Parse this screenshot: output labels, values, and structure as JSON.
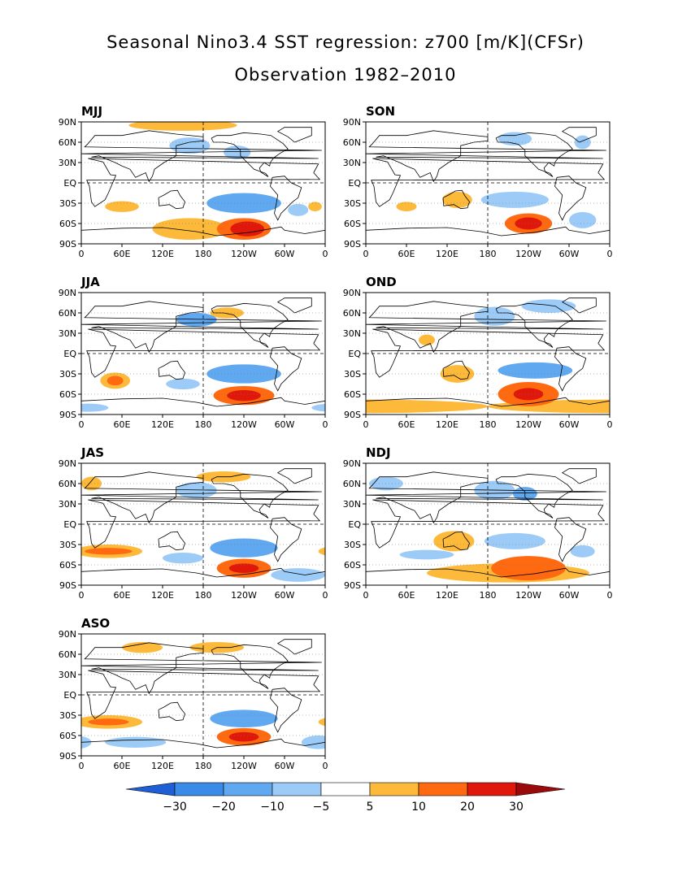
{
  "title": "Seasonal Nino3.4 SST regression: z700 [m/K](CFSr)",
  "subtitle": "Observation 1982–2010",
  "lat_labels": [
    "90N",
    "60N",
    "30N",
    "EQ",
    "30S",
    "60S",
    "90S"
  ],
  "lon_labels": [
    "0",
    "60E",
    "120E",
    "180",
    "120W",
    "60W",
    "0"
  ],
  "colorbar": {
    "labels": [
      "−30",
      "−20",
      "−10",
      "−5",
      "5",
      "10",
      "20",
      "30"
    ],
    "colors": [
      "#1e5fd6",
      "#3a8ae8",
      "#60a8f0",
      "#9ccbf7",
      "#ffffff",
      "#fdb93a",
      "#ff6a10",
      "#e0180b",
      "#9b0a0a"
    ]
  },
  "panels": [
    {
      "label": "MJJ",
      "blobs": [
        {
          "lon": 160,
          "lat": -68,
          "rx": 55,
          "ry": 16,
          "level": 1
        },
        {
          "lon": -120,
          "lat": -68,
          "rx": 40,
          "ry": 16,
          "level": 2
        },
        {
          "lon": -115,
          "lat": -68,
          "rx": 25,
          "ry": 11,
          "level": 3
        },
        {
          "lon": -120,
          "lat": -30,
          "rx": 55,
          "ry": 15,
          "level": -2
        },
        {
          "lon": -40,
          "lat": -40,
          "rx": 15,
          "ry": 9,
          "level": -1
        },
        {
          "lon": -15,
          "lat": -35,
          "rx": 10,
          "ry": 7,
          "level": 1
        },
        {
          "lon": 60,
          "lat": -35,
          "rx": 25,
          "ry": 8,
          "level": 1
        },
        {
          "lon": 160,
          "lat": 55,
          "rx": 30,
          "ry": 12,
          "level": -1
        },
        {
          "lon": -130,
          "lat": 45,
          "rx": 20,
          "ry": 10,
          "level": -1
        },
        {
          "lon": 150,
          "lat": 85,
          "rx": 80,
          "ry": 8,
          "level": 1
        }
      ]
    },
    {
      "label": "SON",
      "blobs": [
        {
          "lon": -120,
          "lat": -60,
          "rx": 35,
          "ry": 15,
          "level": 2
        },
        {
          "lon": -120,
          "lat": -60,
          "rx": 20,
          "ry": 9,
          "level": 3
        },
        {
          "lon": -140,
          "lat": -25,
          "rx": 50,
          "ry": 12,
          "level": -1
        },
        {
          "lon": -40,
          "lat": -55,
          "rx": 20,
          "ry": 12,
          "level": -1
        },
        {
          "lon": 135,
          "lat": -25,
          "rx": 22,
          "ry": 12,
          "level": 1
        },
        {
          "lon": 60,
          "lat": -35,
          "rx": 15,
          "ry": 7,
          "level": 1
        },
        {
          "lon": -40,
          "lat": 60,
          "rx": 12,
          "ry": 10,
          "level": -1
        },
        {
          "lon": -140,
          "lat": 65,
          "rx": 25,
          "ry": 10,
          "level": -1
        }
      ]
    },
    {
      "label": "JJA",
      "blobs": [
        {
          "lon": -120,
          "lat": -62,
          "rx": 45,
          "ry": 14,
          "level": 2
        },
        {
          "lon": -120,
          "lat": -62,
          "rx": 25,
          "ry": 8,
          "level": 3
        },
        {
          "lon": -120,
          "lat": -30,
          "rx": 55,
          "ry": 14,
          "level": -2
        },
        {
          "lon": 50,
          "lat": -40,
          "rx": 22,
          "ry": 12,
          "level": 1
        },
        {
          "lon": 50,
          "lat": -40,
          "rx": 12,
          "ry": 7,
          "level": 2
        },
        {
          "lon": 150,
          "lat": -45,
          "rx": 25,
          "ry": 8,
          "level": -1
        },
        {
          "lon": 170,
          "lat": 50,
          "rx": 30,
          "ry": 10,
          "level": -2
        },
        {
          "lon": -145,
          "lat": 60,
          "rx": 25,
          "ry": 8,
          "level": 1
        },
        {
          "lon": 10,
          "lat": -80,
          "rx": 30,
          "ry": 6,
          "level": -1
        }
      ]
    },
    {
      "label": "OND",
      "blobs": [
        {
          "lon": 0,
          "lat": -78,
          "rx": 180,
          "ry": 10,
          "level": 1
        },
        {
          "lon": -120,
          "lat": -60,
          "rx": 45,
          "ry": 18,
          "level": 2
        },
        {
          "lon": -120,
          "lat": -60,
          "rx": 22,
          "ry": 9,
          "level": 3
        },
        {
          "lon": -110,
          "lat": -25,
          "rx": 55,
          "ry": 12,
          "level": -2
        },
        {
          "lon": 135,
          "lat": -30,
          "rx": 25,
          "ry": 13,
          "level": 1
        },
        {
          "lon": -170,
          "lat": 55,
          "rx": 30,
          "ry": 14,
          "level": -1
        },
        {
          "lon": -90,
          "lat": 70,
          "rx": 40,
          "ry": 10,
          "level": -1
        },
        {
          "lon": 90,
          "lat": 20,
          "rx": 12,
          "ry": 8,
          "level": 1
        }
      ]
    },
    {
      "label": "JAS",
      "blobs": [
        {
          "lon": -120,
          "lat": -65,
          "rx": 40,
          "ry": 14,
          "level": 2
        },
        {
          "lon": -120,
          "lat": -65,
          "rx": 22,
          "ry": 7,
          "level": 3
        },
        {
          "lon": -120,
          "lat": -35,
          "rx": 50,
          "ry": 14,
          "level": -2
        },
        {
          "lon": 40,
          "lat": -40,
          "rx": 50,
          "ry": 10,
          "level": 1
        },
        {
          "lon": 40,
          "lat": -40,
          "rx": 35,
          "ry": 5,
          "level": 2
        },
        {
          "lon": -40,
          "lat": -75,
          "rx": 40,
          "ry": 10,
          "level": -1
        },
        {
          "lon": 150,
          "lat": -50,
          "rx": 30,
          "ry": 8,
          "level": -1
        },
        {
          "lon": 170,
          "lat": 50,
          "rx": 30,
          "ry": 12,
          "level": -1
        },
        {
          "lon": -150,
          "lat": 70,
          "rx": 40,
          "ry": 8,
          "level": 1
        },
        {
          "lon": 15,
          "lat": 60,
          "rx": 15,
          "ry": 10,
          "level": 1
        }
      ]
    },
    {
      "label": "NDJ",
      "blobs": [
        {
          "lon": -150,
          "lat": -72,
          "rx": 120,
          "ry": 14,
          "level": 1
        },
        {
          "lon": -120,
          "lat": -65,
          "rx": 55,
          "ry": 18,
          "level": 2
        },
        {
          "lon": 130,
          "lat": -25,
          "rx": 30,
          "ry": 15,
          "level": 1
        },
        {
          "lon": -140,
          "lat": -25,
          "rx": 45,
          "ry": 12,
          "level": -1
        },
        {
          "lon": -170,
          "lat": 50,
          "rx": 30,
          "ry": 14,
          "level": -1
        },
        {
          "lon": -125,
          "lat": 45,
          "rx": 18,
          "ry": 10,
          "level": -2
        },
        {
          "lon": -40,
          "lat": -40,
          "rx": 18,
          "ry": 9,
          "level": -1
        },
        {
          "lon": 90,
          "lat": -45,
          "rx": 40,
          "ry": 7,
          "level": -1
        },
        {
          "lon": 30,
          "lat": 60,
          "rx": 25,
          "ry": 10,
          "level": -1
        }
      ]
    },
    {
      "label": "ASO",
      "blobs": [
        {
          "lon": -120,
          "lat": -62,
          "rx": 40,
          "ry": 13,
          "level": 2
        },
        {
          "lon": -120,
          "lat": -62,
          "rx": 22,
          "ry": 7,
          "level": 3
        },
        {
          "lon": -120,
          "lat": -35,
          "rx": 50,
          "ry": 13,
          "level": -2
        },
        {
          "lon": 40,
          "lat": -40,
          "rx": 50,
          "ry": 10,
          "level": 1
        },
        {
          "lon": 40,
          "lat": -40,
          "rx": 30,
          "ry": 5,
          "level": 2
        },
        {
          "lon": 80,
          "lat": -70,
          "rx": 45,
          "ry": 8,
          "level": -1
        },
        {
          "lon": -160,
          "lat": 70,
          "rx": 40,
          "ry": 8,
          "level": 1
        },
        {
          "lon": 90,
          "lat": 70,
          "rx": 30,
          "ry": 8,
          "level": 1
        },
        {
          "lon": -10,
          "lat": -70,
          "rx": 25,
          "ry": 10,
          "level": -1
        }
      ]
    }
  ]
}
